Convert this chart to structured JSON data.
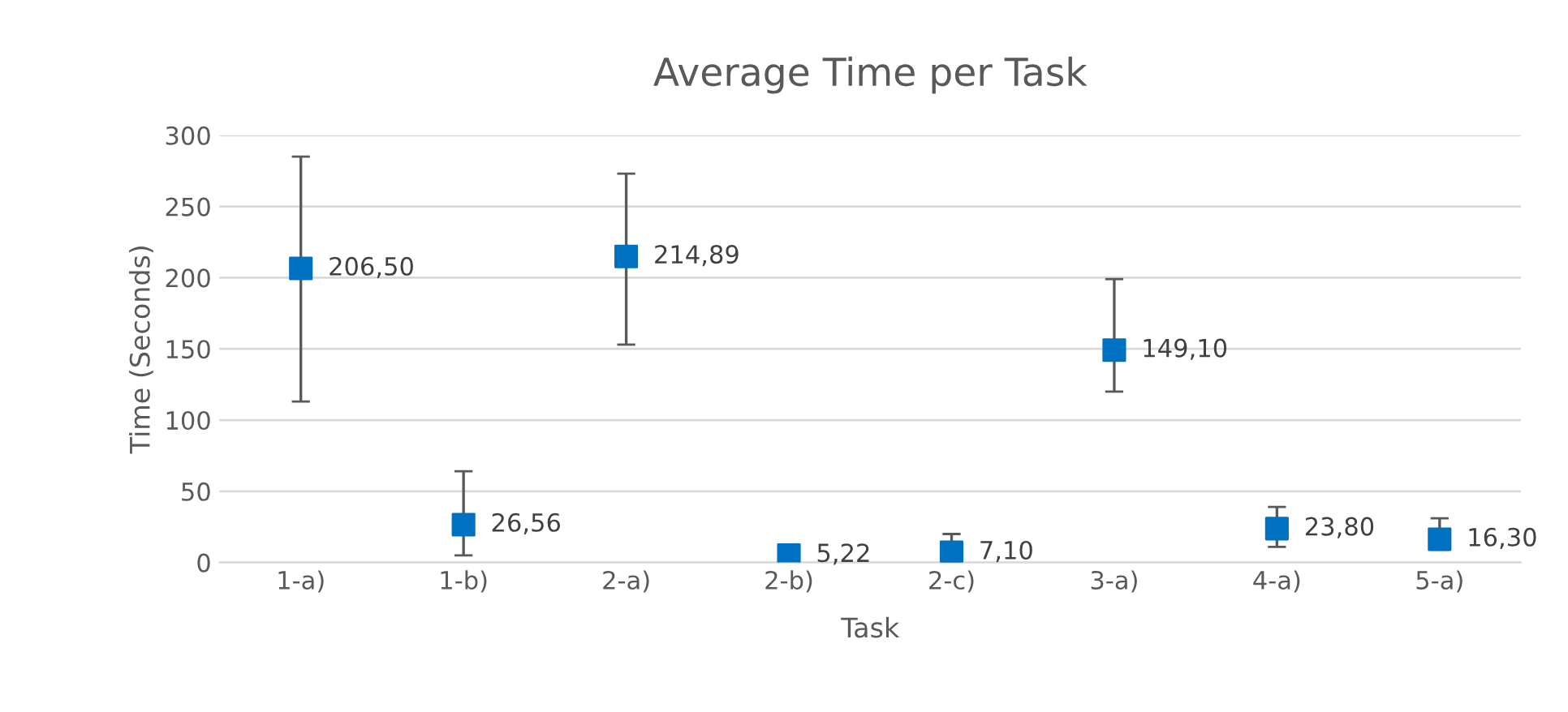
{
  "chart_data": {
    "type": "scatter",
    "title": "Average Time per Task",
    "xlabel": "Task",
    "ylabel": "Time (Seconds)",
    "categories": [
      "1-a)",
      "1-b)",
      "2-a)",
      "2-b)",
      "2-c)",
      "3-a)",
      "4-a)",
      "5-a)"
    ],
    "values": [
      206.5,
      26.56,
      214.89,
      5.22,
      7.1,
      149.1,
      23.8,
      16.3
    ],
    "value_labels": [
      "206,50",
      "26,56",
      "214,89",
      "5,22",
      "7,10",
      "149,10",
      "23,80",
      "16,30"
    ],
    "errors": [
      [
        113,
        285
      ],
      [
        5,
        64
      ],
      [
        153,
        273
      ],
      null,
      [
        2,
        20
      ],
      [
        120,
        199
      ],
      [
        11,
        39
      ],
      [
        9,
        31
      ]
    ],
    "color": "#0070c0",
    "marker": "square",
    "ylim": [
      0,
      300
    ],
    "yticks": [
      0,
      50,
      100,
      150,
      200,
      250,
      300
    ],
    "grid": "y",
    "legend": false
  }
}
